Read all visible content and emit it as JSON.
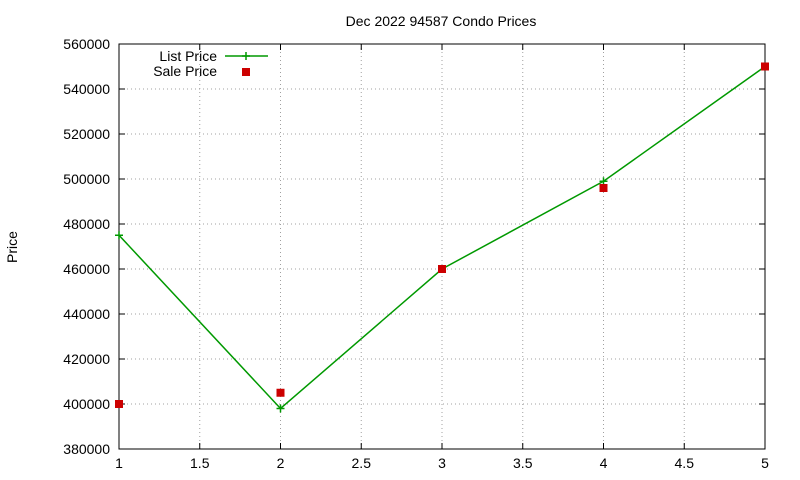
{
  "chart_data": {
    "type": "line",
    "title": "Dec 2022 94587 Condo Prices",
    "xlabel": "",
    "ylabel": "Price",
    "xlim": [
      1,
      5
    ],
    "ylim": [
      380000,
      560000
    ],
    "xticks": [
      1,
      1.5,
      2,
      2.5,
      3,
      3.5,
      4,
      4.5,
      5
    ],
    "yticks": [
      380000,
      400000,
      420000,
      440000,
      460000,
      480000,
      500000,
      520000,
      540000,
      560000
    ],
    "grid": true,
    "legend_position": "top-left",
    "series": [
      {
        "name": "List Price",
        "style": "line-plus",
        "color": "#009900",
        "x": [
          1,
          2,
          3,
          4,
          5
        ],
        "y": [
          475000,
          398000,
          460000,
          499000,
          550000
        ]
      },
      {
        "name": "Sale Price",
        "style": "square-points",
        "color": "#cc0000",
        "x": [
          1,
          2,
          3,
          4,
          5
        ],
        "y": [
          400000,
          405000,
          460000,
          496000,
          550000
        ]
      }
    ]
  }
}
